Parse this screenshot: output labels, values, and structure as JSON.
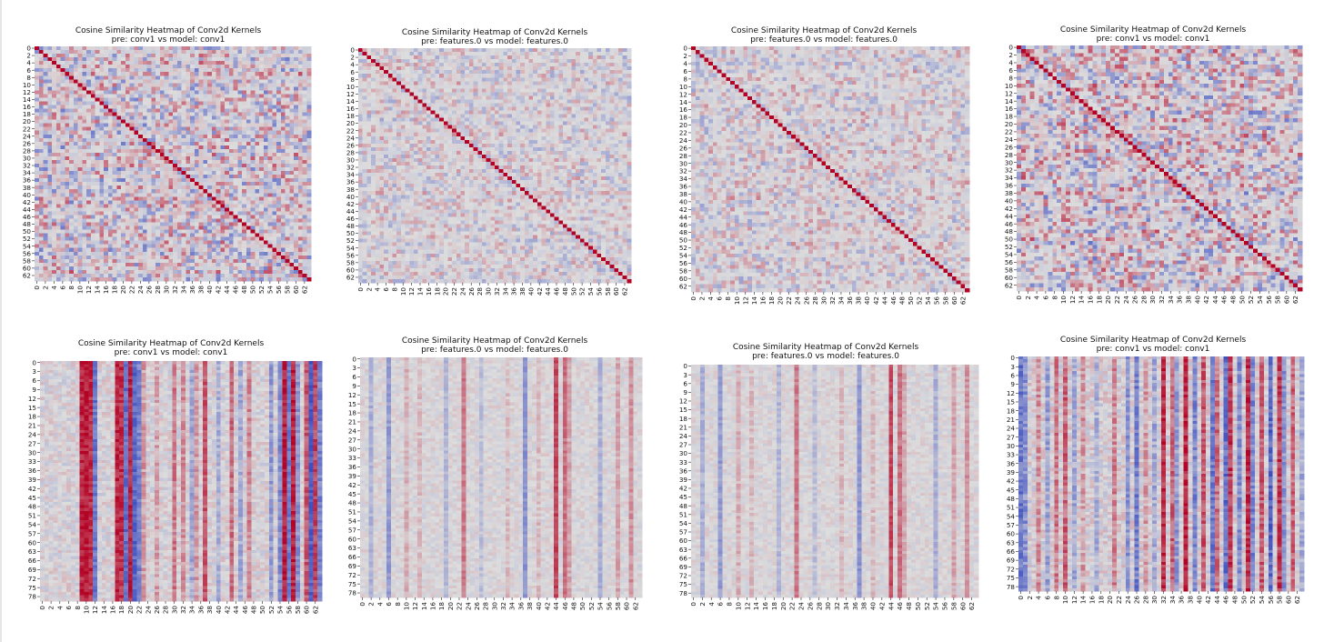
{
  "colormap": {
    "name": "coolwarm",
    "low": "#3b4cc0",
    "mid": "#dddddd",
    "high": "#b40426"
  },
  "chart_data": [
    {
      "type": "heatmap",
      "variant": "diagonal",
      "title": "Cosine Similarity Heatmap of Conv2d Kernels",
      "subtitle": "pre: conv1 vs model: conv1",
      "rows": 64,
      "cols": 64,
      "xtick_step": 2,
      "ytick_step": 2,
      "xticks_max": 62,
      "yticks_max": 62,
      "seed": 11,
      "noise": 0.55,
      "vrange": [
        -1,
        1
      ]
    },
    {
      "type": "heatmap",
      "variant": "diagonal",
      "title": "Cosine Similarity Heatmap of Conv2d Kernels",
      "subtitle": "pre: features.0 vs model: features.0",
      "rows": 64,
      "cols": 64,
      "xtick_step": 2,
      "ytick_step": 2,
      "xticks_max": 62,
      "yticks_max": 62,
      "seed": 23,
      "noise": 0.32,
      "vrange": [
        -1,
        1
      ]
    },
    {
      "type": "heatmap",
      "variant": "diagonal",
      "title": "Cosine Similarity Heatmap of Conv2d Kernels",
      "subtitle": "pre: features.0 vs model: features.0",
      "rows": 64,
      "cols": 64,
      "xtick_step": 2,
      "ytick_step": 2,
      "xticks_max": 62,
      "yticks_max": 62,
      "seed": 37,
      "noise": 0.34,
      "vrange": [
        -1,
        1
      ]
    },
    {
      "type": "heatmap",
      "variant": "diagonal",
      "title": "Cosine Similarity Heatmap of Conv2d Kernels",
      "subtitle": "pre: conv1 vs model: conv1",
      "rows": 64,
      "cols": 64,
      "xtick_step": 2,
      "ytick_step": 2,
      "xticks_max": 62,
      "yticks_max": 62,
      "seed": 51,
      "noise": 0.58,
      "vrange": [
        -1,
        1
      ]
    },
    {
      "type": "heatmap",
      "variant": "columns",
      "title": "Cosine Similarity Heatmap of Conv2d Kernels",
      "subtitle": "pre: conv1 vs model: conv1",
      "rows": 80,
      "cols": 64,
      "xtick_step": 2,
      "ytick_step": 3,
      "xticks_max": 62,
      "yticks_max": 78,
      "seed": 67,
      "noise": 0.18,
      "strong_columns": {
        "9": 0.85,
        "10": 0.9,
        "11": 0.8,
        "12": -0.7,
        "17": 0.85,
        "18": 0.8,
        "19": -0.75,
        "20": 0.85,
        "21": -0.8,
        "22": -0.6,
        "23": 0.3,
        "26": 0.25,
        "30": 0.45,
        "32": 0.35,
        "34": -0.35,
        "35": 0.3,
        "37": 0.6,
        "40": -0.3,
        "43": 0.5,
        "45": -0.35,
        "47": 0.4,
        "52": -0.45,
        "54": -0.55,
        "55": 0.9,
        "56": -0.65,
        "57": 0.85,
        "58": -0.5,
        "60": 0.6,
        "61": -0.85,
        "62": 0.7,
        "63": -0.6
      },
      "vrange": [
        -1,
        1
      ]
    },
    {
      "type": "heatmap",
      "variant": "columns",
      "title": "Cosine Similarity Heatmap of Conv2d Kernels",
      "subtitle": "pre: features.0 vs model: features.0",
      "rows": 80,
      "cols": 64,
      "xtick_step": 2,
      "ytick_step": 3,
      "xticks_max": 62,
      "yticks_max": 78,
      "seed": 79,
      "noise": 0.12,
      "strong_columns": {
        "2": -0.3,
        "6": -0.45,
        "10": 0.2,
        "13": 0.15,
        "19": -0.25,
        "23": 0.45,
        "27": -0.2,
        "33": 0.15,
        "37": -0.5,
        "40": 0.15,
        "44": 0.7,
        "46": 0.5,
        "47": 0.25,
        "54": -0.3,
        "58": 0.25,
        "61": 0.35
      },
      "vrange": [
        -1,
        1
      ]
    },
    {
      "type": "heatmap",
      "variant": "columns",
      "title": "Cosine Similarity Heatmap of Conv2d Kernels",
      "subtitle": "pre: features.0 vs model: features.0",
      "rows": 80,
      "cols": 64,
      "xtick_step": 2,
      "ytick_step": 3,
      "xticks_max": 62,
      "yticks_max": 78,
      "seed": 91,
      "noise": 0.12,
      "strong_columns": {
        "2": -0.3,
        "6": -0.45,
        "10": 0.2,
        "13": 0.15,
        "19": -0.25,
        "23": 0.45,
        "27": -0.2,
        "33": 0.15,
        "37": -0.5,
        "40": 0.15,
        "44": 0.7,
        "46": 0.5,
        "47": 0.25,
        "54": -0.3,
        "58": 0.25,
        "61": 0.35
      },
      "vrange": [
        -1,
        1
      ]
    },
    {
      "type": "heatmap",
      "variant": "columns",
      "title": "Cosine Similarity Heatmap of Conv2d Kernels",
      "subtitle": "pre: conv1 vs model: conv1",
      "rows": 80,
      "cols": 64,
      "xtick_step": 2,
      "ytick_step": 3,
      "xticks_max": 62,
      "yticks_max": 78,
      "seed": 103,
      "noise": 0.22,
      "strong_columns": {
        "0": -0.7,
        "1": -0.5,
        "4": 0.35,
        "6": -0.4,
        "8": 0.45,
        "10": 0.55,
        "12": -0.35,
        "14": 0.3,
        "17": -0.3,
        "21": 0.4,
        "24": -0.5,
        "26": -0.65,
        "28": 0.3,
        "30": -0.35,
        "32": 0.8,
        "34": 0.55,
        "35": -0.45,
        "37": 0.85,
        "39": -0.6,
        "41": 0.6,
        "43": -0.7,
        "44": 0.5,
        "46": -0.75,
        "47": 0.75,
        "49": -0.55,
        "51": 0.8,
        "52": -0.6,
        "54": 0.6,
        "56": -0.8,
        "58": 0.75,
        "59": -0.5,
        "61": 0.55,
        "63": -0.35
      },
      "vrange": [
        -1,
        1
      ]
    }
  ]
}
